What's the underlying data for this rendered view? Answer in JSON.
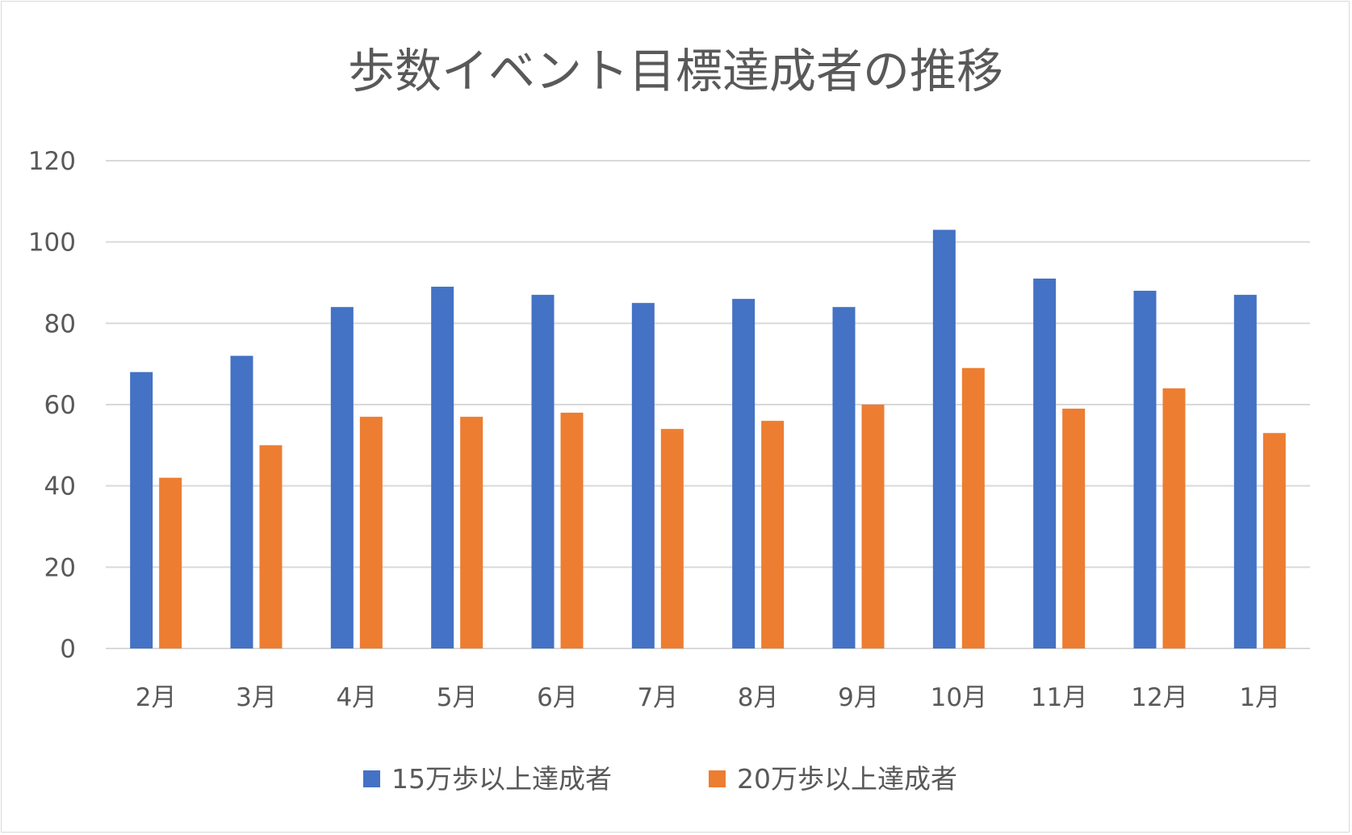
{
  "chart_data": {
    "type": "bar",
    "title": "歩数イベント目標達成者の推移",
    "xlabel": "",
    "ylabel": "",
    "ylim": [
      0,
      120
    ],
    "yticks": [
      0,
      20,
      40,
      60,
      80,
      100,
      120
    ],
    "grid": true,
    "legend_position": "bottom",
    "categories": [
      "2月",
      "3月",
      "4月",
      "5月",
      "6月",
      "7月",
      "8月",
      "9月",
      "10月",
      "11月",
      "12月",
      "1月"
    ],
    "series": [
      {
        "name": "15万歩以上達成者",
        "color": "#4472c4",
        "values": [
          68,
          72,
          84,
          89,
          87,
          85,
          86,
          84,
          103,
          91,
          88,
          87
        ]
      },
      {
        "name": "20万歩以上達成者",
        "color": "#ed7d31",
        "values": [
          42,
          50,
          57,
          57,
          58,
          54,
          56,
          60,
          69,
          59,
          64,
          53
        ]
      }
    ]
  }
}
